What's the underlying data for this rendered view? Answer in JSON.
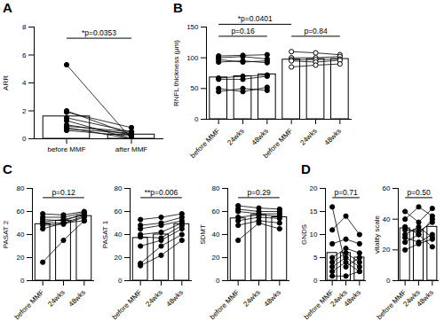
{
  "chart_data": [
    {
      "type": "bar",
      "title": "A",
      "ylabel": "ARR",
      "categories": [
        "before MMF",
        "after MMF"
      ],
      "values": [
        1.6,
        0.3
      ],
      "color": "#ffffff",
      "ylim": [
        0,
        8
      ],
      "yticks": [
        0,
        2,
        4,
        6,
        8
      ],
      "individual": [
        {
          "marker": "circle",
          "values": [
            5.3,
            0
          ]
        },
        {
          "marker": "circle",
          "values": [
            2.0,
            0.3
          ]
        },
        {
          "marker": "circle",
          "values": [
            1.9,
            0.8
          ]
        },
        {
          "marker": "circle",
          "values": [
            1.5,
            0.5
          ]
        },
        {
          "marker": "circle",
          "values": [
            1.3,
            0
          ]
        },
        {
          "marker": "circle",
          "values": [
            1.0,
            0.3
          ]
        },
        {
          "marker": "circle",
          "values": [
            0.9,
            0.5
          ]
        },
        {
          "marker": "circle",
          "values": [
            0.8,
            0
          ]
        },
        {
          "marker": "circle",
          "values": [
            0.7,
            0.4
          ]
        },
        {
          "marker": "circle",
          "values": [
            0.6,
            0.2
          ]
        }
      ],
      "annotations": [
        {
          "text": "*p=0.0353",
          "span": [
            0,
            1
          ]
        }
      ]
    },
    {
      "type": "bar",
      "title": "B",
      "ylabel": "RNFL thickness (μm)",
      "categories": [
        "before MMF",
        "24wks",
        "48wks",
        "before MMF",
        "24wks",
        "48wks"
      ],
      "values": [
        68,
        70,
        73,
        97,
        98,
        98
      ],
      "color": "#ffffff",
      "ylim": [
        0,
        150
      ],
      "yticks": [
        0,
        50,
        100,
        150
      ],
      "individual": [
        {
          "marker": "circle",
          "values": [
            103,
            104,
            105,
            null,
            null,
            null
          ]
        },
        {
          "marker": "circle",
          "values": [
            100,
            102,
            98,
            null,
            null,
            null
          ]
        },
        {
          "marker": "circle",
          "values": [
            97,
            93,
            95,
            null,
            null,
            null
          ]
        },
        {
          "marker": "circle",
          "values": [
            93,
            95,
            92,
            null,
            null,
            null
          ]
        },
        {
          "marker": "circle",
          "values": [
            67,
            70,
            72,
            null,
            null,
            null
          ]
        },
        {
          "marker": "circle",
          "values": [
            65,
            65,
            70,
            null,
            null,
            null
          ]
        },
        {
          "marker": "circle",
          "values": [
            50,
            45,
            52,
            null,
            null,
            null
          ]
        },
        {
          "marker": "circle",
          "values": [
            45,
            50,
            47,
            null,
            null,
            null
          ]
        },
        {
          "marker": "circle-open",
          "values": [
            null,
            null,
            null,
            110,
            108,
            105
          ]
        },
        {
          "marker": "circle-open",
          "values": [
            null,
            null,
            null,
            100,
            100,
            102
          ]
        },
        {
          "marker": "circle-open",
          "values": [
            null,
            null,
            null,
            97,
            97,
            98
          ]
        },
        {
          "marker": "circle-open",
          "values": [
            null,
            null,
            null,
            95,
            93,
            96
          ]
        },
        {
          "marker": "circle-open",
          "values": [
            null,
            null,
            null,
            85,
            88,
            90
          ]
        }
      ],
      "annotations": [
        {
          "text": "p=0.16",
          "span": [
            0,
            2
          ]
        },
        {
          "text": "p=0.84",
          "span": [
            3,
            5
          ]
        },
        {
          "text": "*p=0.0401",
          "span": [
            0,
            3
          ]
        }
      ]
    },
    {
      "type": "bar",
      "title": "C",
      "ylabel": "PASAT 2",
      "categories": [
        "before MMF",
        "24wks",
        "48wks"
      ],
      "values": [
        49,
        52,
        56
      ],
      "color": "#ffffff",
      "ylim": [
        0,
        80
      ],
      "yticks": [
        0,
        20,
        40,
        60,
        80
      ],
      "individual": [
        {
          "marker": "circle",
          "values": [
            58,
            57,
            60
          ]
        },
        {
          "marker": "circle",
          "values": [
            55,
            55,
            59
          ]
        },
        {
          "marker": "circle",
          "values": [
            53,
            52,
            58
          ]
        },
        {
          "marker": "circle",
          "values": [
            51,
            53,
            57
          ]
        },
        {
          "marker": "circle",
          "values": [
            50,
            50,
            56
          ]
        },
        {
          "marker": "circle",
          "values": [
            48,
            49,
            55
          ]
        },
        {
          "marker": "circle",
          "values": [
            45,
            50,
            52
          ]
        },
        {
          "marker": "circle",
          "values": [
            16,
            35,
            52
          ]
        }
      ],
      "annotations": [
        {
          "text": "p=0.12",
          "span": [
            0,
            2
          ]
        }
      ]
    },
    {
      "type": "bar",
      "ylabel": "PASAT 1",
      "categories": [
        "before MMF",
        "24wks",
        "48wks"
      ],
      "values": [
        37,
        40,
        49
      ],
      "color": "#ffffff",
      "ylim": [
        0,
        80
      ],
      "yticks": [
        0,
        20,
        40,
        60,
        80
      ],
      "individual": [
        {
          "marker": "circle",
          "values": [
            53,
            55,
            58
          ]
        },
        {
          "marker": "circle",
          "values": [
            48,
            50,
            55
          ]
        },
        {
          "marker": "circle",
          "values": [
            45,
            48,
            52
          ]
        },
        {
          "marker": "circle",
          "values": [
            40,
            42,
            50
          ]
        },
        {
          "marker": "circle",
          "values": [
            38,
            37,
            48
          ]
        },
        {
          "marker": "circle",
          "values": [
            30,
            35,
            45
          ]
        },
        {
          "marker": "circle",
          "values": [
            15,
            30,
            40
          ]
        },
        {
          "marker": "circle",
          "values": [
            13,
            22,
            35
          ]
        }
      ],
      "annotations": [
        {
          "text": "**p=0.006",
          "span": [
            0,
            2
          ]
        }
      ]
    },
    {
      "type": "bar",
      "ylabel": "SDMT",
      "categories": [
        "before MMF",
        "24wks",
        "48wks"
      ],
      "values": [
        54,
        57,
        55
      ],
      "color": "#ffffff",
      "ylim": [
        0,
        80
      ],
      "yticks": [
        0,
        20,
        40,
        60,
        80
      ],
      "individual": [
        {
          "marker": "circle",
          "values": [
            65,
            63,
            62
          ]
        },
        {
          "marker": "circle",
          "values": [
            62,
            60,
            60
          ]
        },
        {
          "marker": "circle",
          "values": [
            60,
            58,
            58
          ]
        },
        {
          "marker": "circle",
          "values": [
            55,
            57,
            56
          ]
        },
        {
          "marker": "circle",
          "values": [
            52,
            55,
            54
          ]
        },
        {
          "marker": "circle",
          "values": [
            48,
            52,
            50
          ]
        },
        {
          "marker": "circle",
          "values": [
            35,
            50,
            45
          ]
        }
      ],
      "annotations": [
        {
          "text": "p=0.29",
          "span": [
            0,
            2
          ]
        }
      ]
    },
    {
      "type": "bar",
      "title": "D",
      "ylabel": "GNDS",
      "categories": [
        "before MMF",
        "24wks",
        "48wks"
      ],
      "values": [
        6,
        6,
        5
      ],
      "color": "#ffffff",
      "ylim": [
        0,
        20
      ],
      "yticks": [
        0,
        5,
        10,
        15,
        20
      ],
      "individual": [
        {
          "marker": "circle",
          "values": [
            16,
            3,
            5
          ]
        },
        {
          "marker": "circle",
          "values": [
            11,
            14,
            10
          ]
        },
        {
          "marker": "circle",
          "values": [
            8,
            9,
            8
          ]
        },
        {
          "marker": "circle",
          "values": [
            5,
            7,
            6
          ]
        },
        {
          "marker": "circle",
          "values": [
            4,
            6,
            4
          ]
        },
        {
          "marker": "circle",
          "values": [
            3,
            5,
            3
          ]
        },
        {
          "marker": "circle",
          "values": [
            2,
            4,
            2
          ]
        },
        {
          "marker": "circle",
          "values": [
            1,
            1,
            2
          ]
        }
      ],
      "annotations": [
        {
          "text": "p=0.71",
          "span": [
            0,
            2
          ]
        }
      ]
    },
    {
      "type": "bar",
      "ylabel": "vitality scale",
      "categories": [
        "before MMF",
        "24wks",
        "48wks"
      ],
      "values": [
        34,
        33,
        35
      ],
      "color": "#ffffff",
      "ylim": [
        0,
        60
      ],
      "yticks": [
        0,
        20,
        40,
        60
      ],
      "individual": [
        {
          "marker": "circle",
          "values": [
            45,
            38,
            47
          ]
        },
        {
          "marker": "circle",
          "values": [
            40,
            48,
            42
          ]
        },
        {
          "marker": "circle",
          "values": [
            35,
            30,
            40
          ]
        },
        {
          "marker": "circle",
          "values": [
            33,
            32,
            38
          ]
        },
        {
          "marker": "circle",
          "values": [
            30,
            35,
            28
          ]
        },
        {
          "marker": "circle",
          "values": [
            28,
            25,
            30
          ]
        },
        {
          "marker": "circle",
          "values": [
            25,
            30,
            22
          ]
        },
        {
          "marker": "circle",
          "values": [
            20,
            24,
            27
          ]
        }
      ],
      "annotations": [
        {
          "text": "p=0.50",
          "span": [
            0,
            2
          ]
        }
      ]
    }
  ]
}
